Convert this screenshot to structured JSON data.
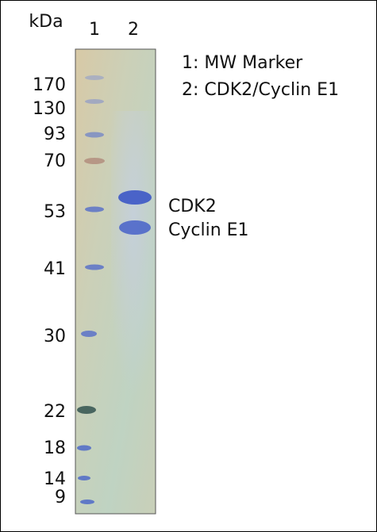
{
  "unit_label": "kDa",
  "lanes": [
    "1",
    "2"
  ],
  "legend": [
    "1: MW Marker",
    "2: CDK2/Cyclin E1"
  ],
  "markers": [
    170,
    130,
    93,
    70,
    53,
    41,
    30,
    22,
    18,
    14,
    9
  ],
  "bands": [
    "CDK2",
    "Cyclin E1"
  ]
}
